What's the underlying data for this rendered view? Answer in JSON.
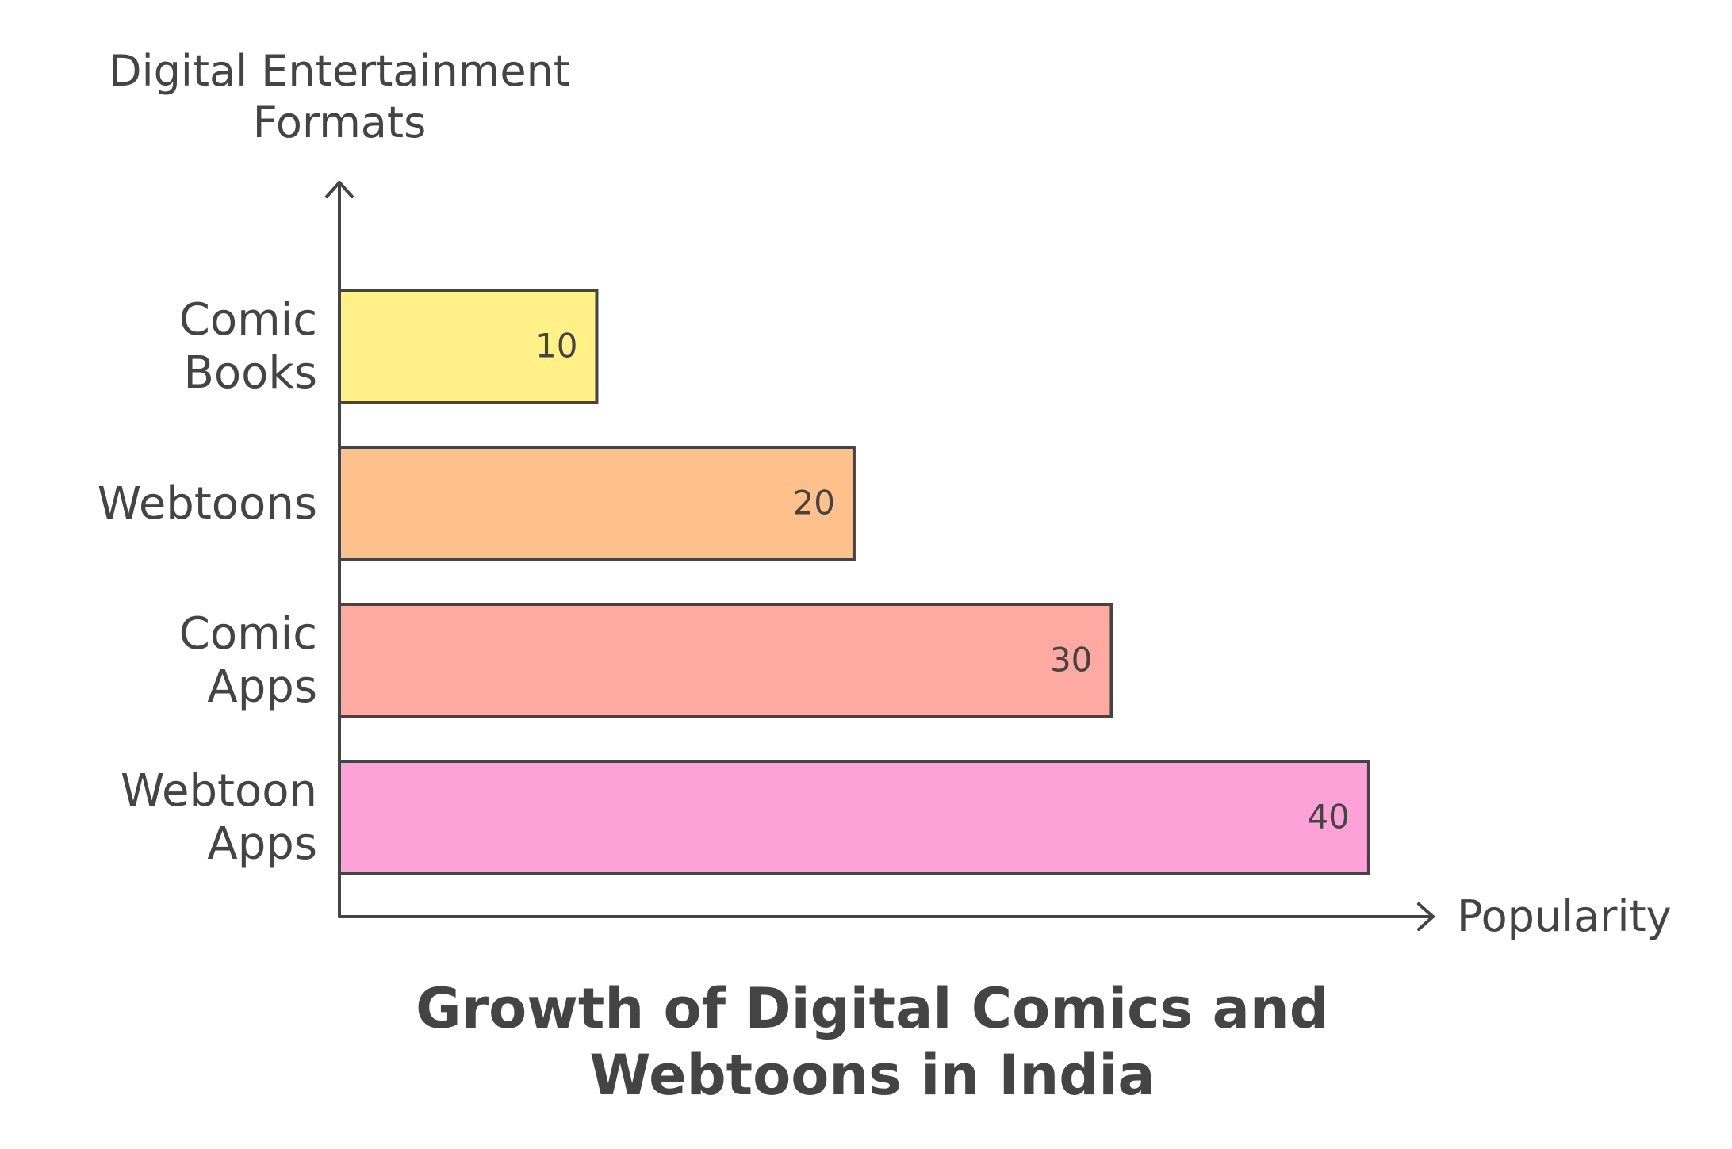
{
  "chart_data": {
    "type": "bar",
    "orientation": "horizontal",
    "title": "Growth of Digital Comics and Webtoons in India",
    "y_label": "Digital Entertainment Formats",
    "x_label": "Popularity",
    "categories": [
      "Comic Books",
      "Webtoons",
      "Comic Apps",
      "Webtoon Apps"
    ],
    "values": [
      10,
      20,
      30,
      40
    ],
    "colors": [
      "#fff187",
      "#fec18c",
      "#fea9a1",
      "#fea1d9"
    ],
    "xlim": [
      0,
      42.5
    ]
  }
}
